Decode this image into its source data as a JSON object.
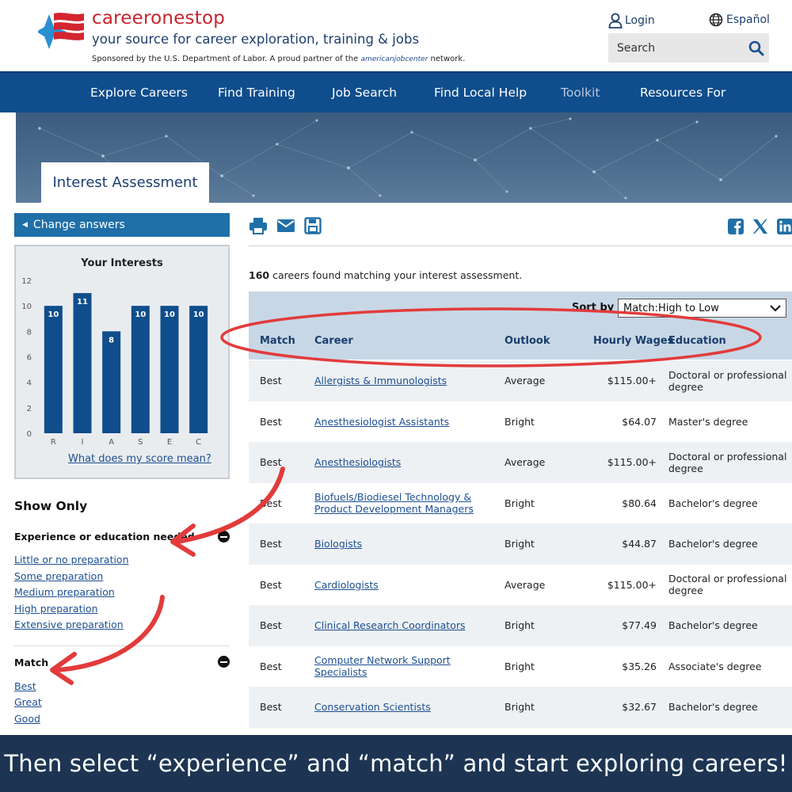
{
  "header": {
    "brand": "careeronestop",
    "tagline": "your source for career exploration, training & jobs",
    "sponsor_prefix": "Sponsored by the U.S. Department of Labor. A proud partner of the",
    "sponsor_partner": "americanjobcenter",
    "sponsor_suffix": "network.",
    "login_label": "Login",
    "espanol_label": "Español",
    "search_placeholder": "Search",
    "icons": [
      "person-icon",
      "globe-icon",
      "search-icon"
    ]
  },
  "nav": {
    "items": [
      "Explore Careers",
      "Find Training",
      "Job Search",
      "Find Local Help",
      "Toolkit",
      "Resources For"
    ]
  },
  "banner": {
    "tab_label": "Interest Assessment"
  },
  "sidebar": {
    "change_answers": "Change answers",
    "score_link": "What does my score mean?",
    "show_only": "Show Only",
    "experience_heading": "Experience or education needed",
    "experience_options": [
      "Little or no preparation",
      "Some preparation",
      "Medium preparation",
      "High preparation",
      "Extensive preparation"
    ],
    "match_heading": "Match",
    "match_options": [
      "Best",
      "Great",
      "Good"
    ]
  },
  "chart_data": {
    "type": "bar",
    "title": "Your Interests",
    "categories": [
      "R",
      "I",
      "A",
      "S",
      "E",
      "C"
    ],
    "values": [
      10,
      11,
      8,
      10,
      10,
      10
    ],
    "yticks": [
      0,
      2,
      4,
      6,
      8,
      10,
      12
    ],
    "ylim": [
      0,
      12
    ],
    "bar_color": "#0f4d8c",
    "data_labels": true,
    "grid": false
  },
  "toolbar": {
    "icons": [
      "print-icon",
      "email-icon",
      "save-icon"
    ],
    "share_icons": [
      "facebook-icon",
      "x-icon",
      "linkedin-icon"
    ]
  },
  "results": {
    "count": "160",
    "count_text": "careers found matching your interest assessment.",
    "sort_label": "Sort by",
    "sort_value": "Match:High to Low",
    "columns": [
      "Match",
      "Career",
      "Outlook",
      "Hourly Wages",
      "Education"
    ],
    "rows": [
      {
        "match": "Best",
        "career": [
          "Allergists & Immunologists"
        ],
        "outlook": "Average",
        "wage": "$115.00+",
        "education": [
          "Doctoral or professional",
          "degree"
        ]
      },
      {
        "match": "Best",
        "career": [
          "Anesthesiologist Assistants"
        ],
        "outlook": "Bright",
        "wage": "$64.07",
        "education": [
          "Master's degree"
        ]
      },
      {
        "match": "Best",
        "career": [
          "Anesthesiologists"
        ],
        "outlook": "Average",
        "wage": "$115.00+",
        "education": [
          "Doctoral or professional",
          "degree"
        ]
      },
      {
        "match": "Best",
        "career": [
          "Biofuels/Biodiesel Technology &",
          "Product Development Managers"
        ],
        "outlook": "Bright",
        "wage": "$80.64",
        "education": [
          "Bachelor's degree"
        ]
      },
      {
        "match": "Best",
        "career": [
          "Biologists"
        ],
        "outlook": "Bright",
        "wage": "$44.87",
        "education": [
          "Bachelor's degree"
        ]
      },
      {
        "match": "Best",
        "career": [
          "Cardiologists"
        ],
        "outlook": "Average",
        "wage": "$115.00+",
        "education": [
          "Doctoral or professional",
          "degree"
        ]
      },
      {
        "match": "Best",
        "career": [
          "Clinical Research Coordinators"
        ],
        "outlook": "Bright",
        "wage": "$77.49",
        "education": [
          "Bachelor's degree"
        ]
      },
      {
        "match": "Best",
        "career": [
          "Computer Network Support",
          "Specialists"
        ],
        "outlook": "Bright",
        "wage": "$35.26",
        "education": [
          "Associate's degree"
        ]
      },
      {
        "match": "Best",
        "career": [
          "Conservation Scientists"
        ],
        "outlook": "Bright",
        "wage": "$32.67",
        "education": [
          "Bachelor's degree"
        ]
      }
    ]
  },
  "annotation_color": "#e23b3b",
  "caption": "Then select “experience” and “match” and start exploring careers!"
}
